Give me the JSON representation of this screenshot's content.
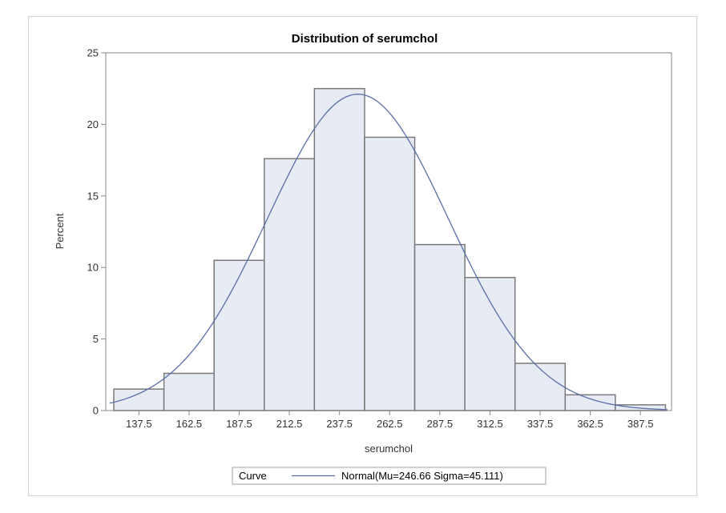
{
  "chart_data": {
    "type": "bar",
    "title": "Distribution of serumchol",
    "xlabel": "serumchol",
    "ylabel": "Percent",
    "categories": [
      "137.5",
      "162.5",
      "187.5",
      "212.5",
      "237.5",
      "262.5",
      "287.5",
      "312.5",
      "337.5",
      "362.5",
      "387.5"
    ],
    "bin_midpoints": [
      137.5,
      162.5,
      187.5,
      212.5,
      237.5,
      262.5,
      287.5,
      312.5,
      337.5,
      362.5,
      387.5
    ],
    "bin_width": 25,
    "values": [
      1.5,
      2.6,
      10.5,
      17.6,
      22.5,
      19.1,
      11.6,
      9.3,
      3.3,
      1.1,
      0.4
    ],
    "xlim": [
      121,
      403
    ],
    "ylim": [
      0,
      25
    ],
    "yticks": [
      0,
      5,
      10,
      15,
      20,
      25
    ],
    "curve": {
      "type": "normal",
      "mu": 246.66,
      "sigma": 45.111,
      "color": "#5a6ea8"
    },
    "bar_fill": "#e6ebf4",
    "bar_stroke": "#7a7a7a",
    "legend": {
      "title": "Curve",
      "entries": [
        "Normal(Mu=246.66 Sigma=45.111)"
      ],
      "placement": "bottom"
    },
    "grid": false
  }
}
